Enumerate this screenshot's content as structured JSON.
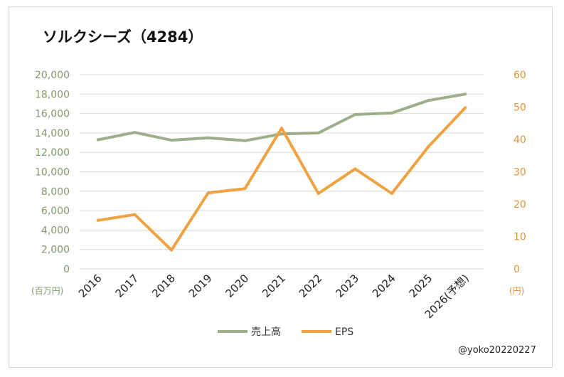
{
  "chart_data": {
    "type": "line",
    "title": "ソルクシーズ（4284）",
    "categories": [
      "2016",
      "2017",
      "2018",
      "2019",
      "2020",
      "2021",
      "2022",
      "2023",
      "2024",
      "2025",
      "2026(予想)"
    ],
    "y_left": {
      "unit_label": "(百万円)",
      "ylim": [
        0,
        20000
      ],
      "ticks": [
        "0",
        "2,000",
        "4,000",
        "6,000",
        "8,000",
        "10,000",
        "12,000",
        "14,000",
        "16,000",
        "18,000",
        "20,000"
      ]
    },
    "y_right": {
      "unit_label": "(円)",
      "ylim": [
        0,
        60
      ],
      "ticks": [
        "0",
        "10",
        "20",
        "30",
        "40",
        "50",
        "60"
      ]
    },
    "series": [
      {
        "name": "売上高",
        "axis": "left",
        "color": "#9caf88",
        "values": [
          13300,
          14050,
          13250,
          13500,
          13200,
          13900,
          14000,
          15900,
          16050,
          17350,
          18000
        ]
      },
      {
        "name": "EPS",
        "axis": "right",
        "color": "#f0a242",
        "values": [
          15,
          16.8,
          5.8,
          23.5,
          24.8,
          43.5,
          23.3,
          30.9,
          23.3,
          37.8,
          49.8
        ]
      }
    ],
    "grid": true,
    "legend": "bottom"
  },
  "credit": "@yoko20220227",
  "colors": {
    "left_axis_text": "#7f9a6a",
    "right_axis_text": "#e0933a",
    "grid": "#d9d9d9"
  }
}
